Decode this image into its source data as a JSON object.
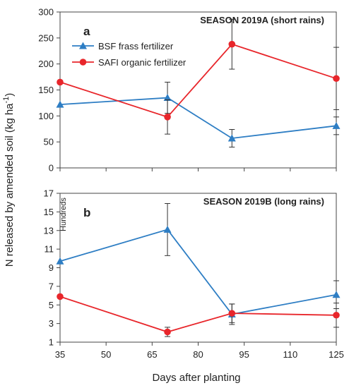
{
  "chart_data": {
    "type": "line",
    "shared": {
      "ylabel": "N released by amended soil (kg ha",
      "ylabel_sup": "-1",
      "ylabel_close": ")",
      "xlabel": "Days after planting",
      "x_ticks": [
        35,
        50,
        65,
        80,
        95,
        110,
        125
      ],
      "xlim": [
        35,
        125
      ],
      "legend": {
        "position": "top-left"
      }
    },
    "panels": [
      {
        "letter": "a",
        "title": "SEASON 2019A (short rains)",
        "ylim": [
          0,
          300
        ],
        "y_ticks": [
          0,
          50,
          100,
          150,
          200,
          250,
          300
        ],
        "series": [
          {
            "name": "BSF frass fertilizer",
            "color": "#2e7ec4",
            "marker": "triangle",
            "x": [
              35,
              70,
              91,
              125
            ],
            "y": [
              122,
              135,
              57,
              81
            ],
            "err": [
              0,
              30,
              17,
              17
            ]
          },
          {
            "name": "SAFI organic fertilizer",
            "color": "#e8262b",
            "marker": "circle",
            "x": [
              35,
              70,
              91,
              125
            ],
            "y": [
              165,
              98,
              238,
              172
            ],
            "err": [
              0,
              33,
              48,
              60
            ]
          }
        ]
      },
      {
        "letter": "b",
        "title": "SEASON 2019B (long rains)",
        "unit_label": "Hundreds",
        "ylim": [
          1,
          17
        ],
        "y_ticks": [
          1,
          3,
          5,
          7,
          9,
          11,
          13,
          15,
          17
        ],
        "series": [
          {
            "name": "BSF frass fertilizer",
            "color": "#2e7ec4",
            "marker": "triangle",
            "x": [
              35,
              70,
              91,
              125
            ],
            "y": [
              9.7,
              13.1,
              4.0,
              6.1
            ],
            "err": [
              0,
              2.8,
              1.1,
              1.5
            ]
          },
          {
            "name": "SAFI organic fertilizer",
            "color": "#e8262b",
            "marker": "circle",
            "x": [
              35,
              70,
              91,
              125
            ],
            "y": [
              5.9,
              2.1,
              4.1,
              3.9
            ],
            "err": [
              0,
              0.5,
              1.0,
              1.3
            ]
          }
        ]
      }
    ]
  }
}
